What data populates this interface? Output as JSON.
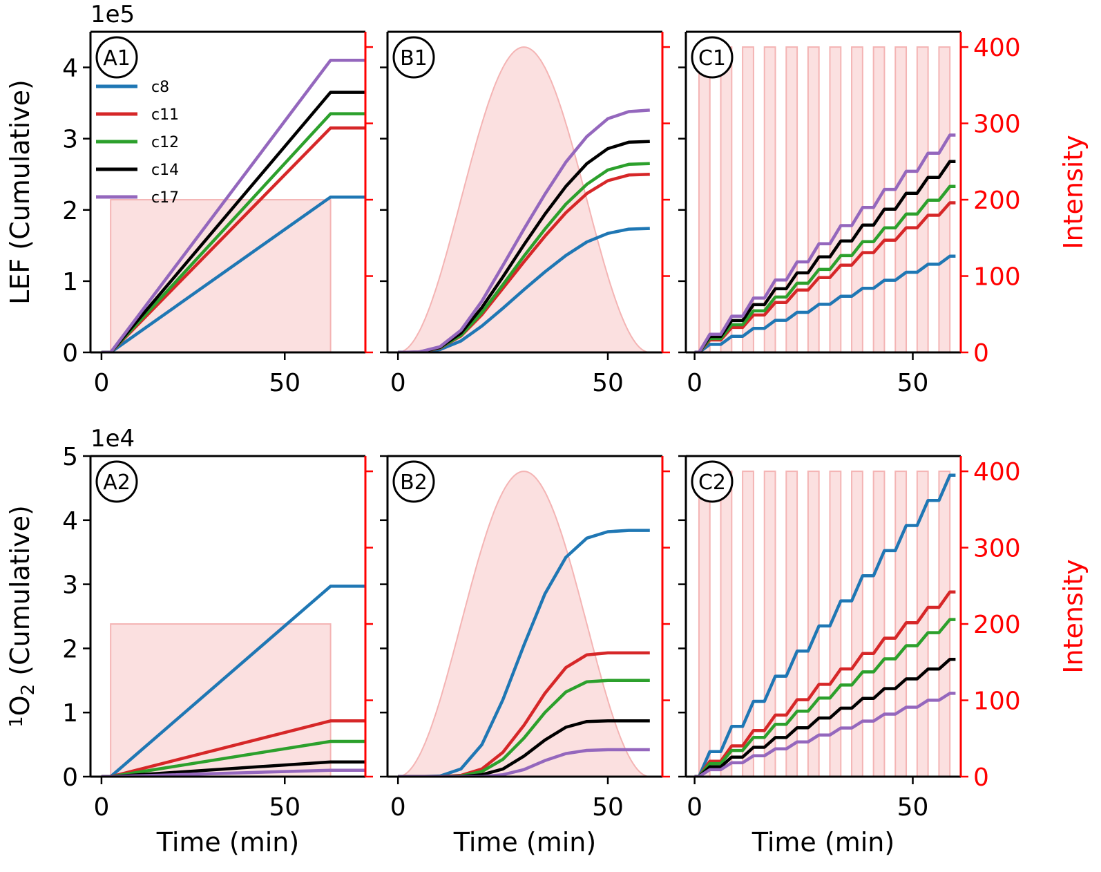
{
  "colors": {
    "c8": "#1f77b4",
    "c11": "#d62728",
    "c12": "#2ca02c",
    "c14": "#000000",
    "c17": "#9467bd",
    "light_fill": "#fbe0e0",
    "light_edge": "#f4b4b4",
    "intensity_axis": "#ff0000"
  },
  "legend": [
    "c8",
    "c11",
    "c12",
    "c14",
    "c17"
  ],
  "chart_data": [
    {
      "id": "A1",
      "row": 0,
      "col": 0,
      "type": "line",
      "title": "A1",
      "xlabel": "",
      "ylabel": "LEF (Cumulative)",
      "ylabel_parts": [
        "LEF (Cumulative)"
      ],
      "multiplier": "1e5",
      "xlim": [
        -3,
        72
      ],
      "xticks": [
        0,
        50
      ],
      "xtick_labels": [
        "0",
        "50"
      ],
      "ylim": [
        0,
        4.5
      ],
      "yticks": [
        0,
        1,
        2,
        3,
        4
      ],
      "ytick_labels": [
        "0",
        "1",
        "2",
        "3",
        "4"
      ],
      "light": {
        "type": "constant",
        "start": 2.5,
        "end": 62.5,
        "intensity": 200
      },
      "intensity_ylim": [
        0,
        420
      ],
      "intensity_ticks": [
        0,
        100,
        200,
        300,
        400
      ],
      "intensity_tick_labels": [],
      "intensity_label": "",
      "series": [
        {
          "name": "c8",
          "x": [
            0,
            2.5,
            62.5,
            72
          ],
          "y": [
            0,
            0,
            2.18,
            2.18
          ]
        },
        {
          "name": "c11",
          "x": [
            0,
            2.5,
            62.5,
            72
          ],
          "y": [
            0,
            0,
            3.15,
            3.15
          ]
        },
        {
          "name": "c12",
          "x": [
            0,
            2.5,
            62.5,
            72
          ],
          "y": [
            0,
            0,
            3.35,
            3.35
          ]
        },
        {
          "name": "c14",
          "x": [
            0,
            2.5,
            62.5,
            72
          ],
          "y": [
            0,
            0,
            3.65,
            3.65
          ]
        },
        {
          "name": "c17",
          "x": [
            0,
            2.5,
            62.5,
            72
          ],
          "y": [
            0,
            0,
            4.1,
            4.1
          ]
        }
      ]
    },
    {
      "id": "B1",
      "row": 0,
      "col": 1,
      "type": "line",
      "title": "B1",
      "xlabel": "",
      "ylabel": "",
      "ylabel_parts": [],
      "multiplier": "",
      "xlim": [
        -2.5,
        63
      ],
      "xticks": [
        0,
        50
      ],
      "xtick_labels": [
        "0",
        "50"
      ],
      "ylim": [
        0,
        4.5
      ],
      "yticks": [
        0,
        1,
        2,
        3,
        4
      ],
      "ytick_labels": [],
      "light": {
        "type": "bell",
        "start": 0,
        "end": 60,
        "intensity": 400
      },
      "intensity_ylim": [
        0,
        420
      ],
      "intensity_ticks": [
        0,
        100,
        200,
        300,
        400
      ],
      "intensity_tick_labels": [],
      "intensity_label": "",
      "series": [
        {
          "name": "c8",
          "x": [
            0,
            5,
            10,
            15,
            20,
            25,
            30,
            35,
            40,
            45,
            50,
            55,
            60
          ],
          "y": [
            0,
            0.003,
            0.04,
            0.16,
            0.37,
            0.62,
            0.88,
            1.13,
            1.36,
            1.55,
            1.67,
            1.73,
            1.74
          ]
        },
        {
          "name": "c11",
          "x": [
            0,
            5,
            10,
            15,
            20,
            25,
            30,
            35,
            40,
            45,
            50,
            55,
            60
          ],
          "y": [
            0,
            0.004,
            0.06,
            0.23,
            0.53,
            0.9,
            1.27,
            1.63,
            1.96,
            2.23,
            2.41,
            2.49,
            2.5
          ]
        },
        {
          "name": "c12",
          "x": [
            0,
            5,
            10,
            15,
            20,
            25,
            30,
            35,
            40,
            45,
            50,
            55,
            60
          ],
          "y": [
            0,
            0.004,
            0.065,
            0.24,
            0.56,
            0.95,
            1.35,
            1.73,
            2.08,
            2.36,
            2.56,
            2.64,
            2.65
          ]
        },
        {
          "name": "c14",
          "x": [
            0,
            5,
            10,
            15,
            20,
            25,
            30,
            35,
            40,
            45,
            50,
            55,
            60
          ],
          "y": [
            0,
            0.005,
            0.07,
            0.27,
            0.63,
            1.06,
            1.51,
            1.94,
            2.33,
            2.65,
            2.86,
            2.95,
            2.96
          ]
        },
        {
          "name": "c17",
          "x": [
            0,
            5,
            10,
            15,
            20,
            25,
            30,
            35,
            40,
            45,
            50,
            55,
            60
          ],
          "y": [
            0,
            0.006,
            0.08,
            0.31,
            0.72,
            1.22,
            1.73,
            2.22,
            2.67,
            3.03,
            3.28,
            3.38,
            3.4
          ]
        }
      ]
    },
    {
      "id": "C1",
      "row": 0,
      "col": 2,
      "type": "line",
      "title": "C1",
      "xlabel": "",
      "ylabel": "",
      "ylabel_parts": [],
      "multiplier": "",
      "xlim": [
        -2,
        61
      ],
      "xticks": [
        0,
        50
      ],
      "xtick_labels": [
        "0",
        "50"
      ],
      "ylim": [
        0,
        4.5
      ],
      "yticks": [
        0,
        1,
        2,
        3,
        4
      ],
      "ytick_labels": [],
      "light": {
        "type": "pulses",
        "start": 1,
        "period": 5,
        "width": 2.5,
        "count": 12,
        "intensity": 400
      },
      "intensity_ylim": [
        0,
        420
      ],
      "intensity_ticks": [
        0,
        100,
        200,
        300,
        400
      ],
      "intensity_tick_labels": [
        "0",
        "100",
        "200",
        "300",
        "400"
      ],
      "intensity_label": "Intensity",
      "series": [
        {
          "name": "c8",
          "step_total": 1.35
        },
        {
          "name": "c11",
          "step_total": 2.1
        },
        {
          "name": "c12",
          "step_total": 2.33
        },
        {
          "name": "c14",
          "step_total": 2.68
        },
        {
          "name": "c17",
          "step_total": 3.05
        }
      ]
    },
    {
      "id": "A2",
      "row": 1,
      "col": 0,
      "type": "line",
      "title": "A2",
      "xlabel": "Time (min)",
      "ylabel": "1O2 (Cumulative)",
      "ylabel_parts": [
        "1",
        "O",
        "2",
        " (Cumulative)"
      ],
      "multiplier": "1e4",
      "xlim": [
        -3,
        72
      ],
      "xticks": [
        0,
        50
      ],
      "xtick_labels": [
        "0",
        "50"
      ],
      "ylim": [
        0,
        5
      ],
      "yticks": [
        0,
        1,
        2,
        3,
        4,
        5
      ],
      "ytick_labels": [
        "0",
        "1",
        "2",
        "3",
        "4",
        "5"
      ],
      "light": {
        "type": "constant",
        "start": 2.5,
        "end": 62.5,
        "intensity": 200
      },
      "intensity_ylim": [
        0,
        420
      ],
      "intensity_ticks": [
        0,
        100,
        200,
        300,
        400
      ],
      "intensity_tick_labels": [],
      "intensity_label": "",
      "series": [
        {
          "name": "c8",
          "x": [
            0,
            2.5,
            62.5,
            72
          ],
          "y": [
            0,
            0,
            2.97,
            2.97
          ]
        },
        {
          "name": "c11",
          "x": [
            0,
            2.5,
            62.5,
            72
          ],
          "y": [
            0,
            0,
            0.87,
            0.87
          ]
        },
        {
          "name": "c12",
          "x": [
            0,
            2.5,
            62.5,
            72
          ],
          "y": [
            0,
            0,
            0.55,
            0.55
          ]
        },
        {
          "name": "c14",
          "x": [
            0,
            2.5,
            62.5,
            72
          ],
          "y": [
            0,
            0,
            0.23,
            0.23
          ]
        },
        {
          "name": "c17",
          "x": [
            0,
            2.5,
            62.5,
            72
          ],
          "y": [
            0,
            0,
            0.1,
            0.1
          ]
        }
      ]
    },
    {
      "id": "B2",
      "row": 1,
      "col": 1,
      "type": "line",
      "title": "B2",
      "xlabel": "Time (min)",
      "ylabel": "",
      "ylabel_parts": [],
      "multiplier": "",
      "xlim": [
        -2.5,
        63
      ],
      "xticks": [
        0,
        50
      ],
      "xtick_labels": [
        "0",
        "50"
      ],
      "ylim": [
        0,
        5
      ],
      "yticks": [
        0,
        1,
        2,
        3,
        4,
        5
      ],
      "ytick_labels": [],
      "light": {
        "type": "bell",
        "start": 0,
        "end": 60,
        "intensity": 400
      },
      "intensity_ylim": [
        0,
        420
      ],
      "intensity_ticks": [
        0,
        100,
        200,
        300,
        400
      ],
      "intensity_tick_labels": [],
      "intensity_label": "",
      "series": [
        {
          "name": "c8",
          "x": [
            0,
            5,
            10,
            15,
            20,
            25,
            30,
            35,
            40,
            45,
            50,
            55,
            60
          ],
          "y": [
            0,
            0,
            0.01,
            0.12,
            0.5,
            1.2,
            2.05,
            2.85,
            3.42,
            3.72,
            3.82,
            3.84,
            3.84
          ]
        },
        {
          "name": "c11",
          "x": [
            0,
            5,
            10,
            15,
            20,
            25,
            30,
            35,
            40,
            45,
            50,
            55,
            60
          ],
          "y": [
            0,
            0,
            0,
            0.02,
            0.12,
            0.38,
            0.8,
            1.3,
            1.7,
            1.9,
            1.93,
            1.93,
            1.93
          ]
        },
        {
          "name": "c12",
          "x": [
            0,
            5,
            10,
            15,
            20,
            25,
            30,
            35,
            40,
            45,
            50,
            55,
            60
          ],
          "y": [
            0,
            0,
            0,
            0.01,
            0.08,
            0.27,
            0.6,
            1.0,
            1.32,
            1.48,
            1.5,
            1.5,
            1.5
          ]
        },
        {
          "name": "c14",
          "x": [
            0,
            5,
            10,
            15,
            20,
            25,
            30,
            35,
            40,
            45,
            50,
            55,
            60
          ],
          "y": [
            0,
            0,
            0,
            0,
            0.03,
            0.12,
            0.32,
            0.57,
            0.77,
            0.86,
            0.87,
            0.87,
            0.87
          ]
        },
        {
          "name": "c17",
          "x": [
            0,
            5,
            10,
            15,
            20,
            25,
            30,
            35,
            40,
            45,
            50,
            55,
            60
          ],
          "y": [
            0,
            0,
            0,
            0,
            0,
            0.03,
            0.11,
            0.25,
            0.36,
            0.41,
            0.42,
            0.42,
            0.42
          ]
        }
      ]
    },
    {
      "id": "C2",
      "row": 1,
      "col": 2,
      "type": "line",
      "title": "C2",
      "xlabel": "Time (min)",
      "ylabel": "",
      "ylabel_parts": [],
      "multiplier": "",
      "xlim": [
        -2,
        61
      ],
      "xticks": [
        0,
        50
      ],
      "xtick_labels": [
        "0",
        "50"
      ],
      "ylim": [
        0,
        5
      ],
      "yticks": [
        0,
        1,
        2,
        3,
        4,
        5
      ],
      "ytick_labels": [],
      "light": {
        "type": "pulses",
        "start": 1,
        "period": 5,
        "width": 2.5,
        "count": 12,
        "intensity": 400
      },
      "intensity_ylim": [
        0,
        420
      ],
      "intensity_ticks": [
        0,
        100,
        200,
        300,
        400
      ],
      "intensity_tick_labels": [
        "0",
        "100",
        "200",
        "300",
        "400"
      ],
      "intensity_label": "Intensity",
      "series": [
        {
          "name": "c8",
          "step_total": 4.7
        },
        {
          "name": "c11",
          "step_total": 2.88
        },
        {
          "name": "c12",
          "step_total": 2.45
        },
        {
          "name": "c14",
          "step_total": 1.83
        },
        {
          "name": "c17",
          "step_total": 1.3
        }
      ]
    }
  ]
}
